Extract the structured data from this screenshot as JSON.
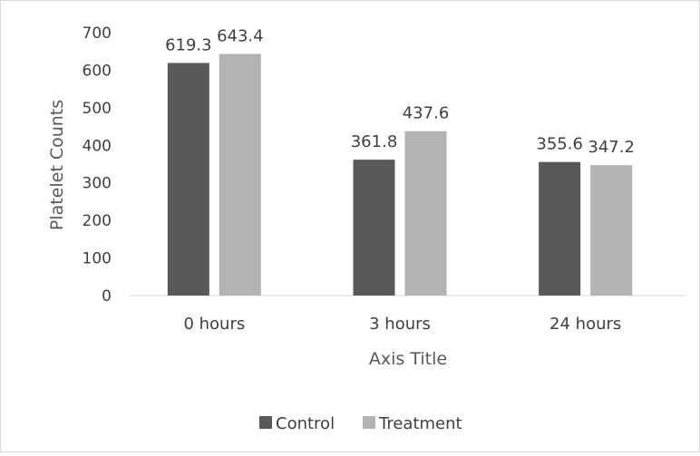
{
  "colors": {
    "control": "#595959",
    "treatment": "#b3b3b3",
    "axis": "#d9d9d9",
    "text": "#404040"
  },
  "chart_data": {
    "type": "bar",
    "categories": [
      "0 hours",
      "3 hours",
      "24 hours"
    ],
    "series": [
      {
        "name": "Control",
        "values": [
          619.3,
          361.8,
          355.6
        ],
        "labels": [
          "619.3",
          "361.8",
          "355.6"
        ]
      },
      {
        "name": "Treatment",
        "values": [
          643.4,
          437.6,
          347.2
        ],
        "labels": [
          "643.4",
          "437.6",
          "347.2"
        ]
      }
    ],
    "title": "",
    "xlabel": "Axis Title",
    "ylabel": "Platelet Counts",
    "ylim": [
      0,
      700
    ],
    "yticks": [
      "0",
      "100",
      "200",
      "300",
      "400",
      "500",
      "600",
      "700"
    ],
    "grid": false,
    "legend_position": "bottom"
  }
}
